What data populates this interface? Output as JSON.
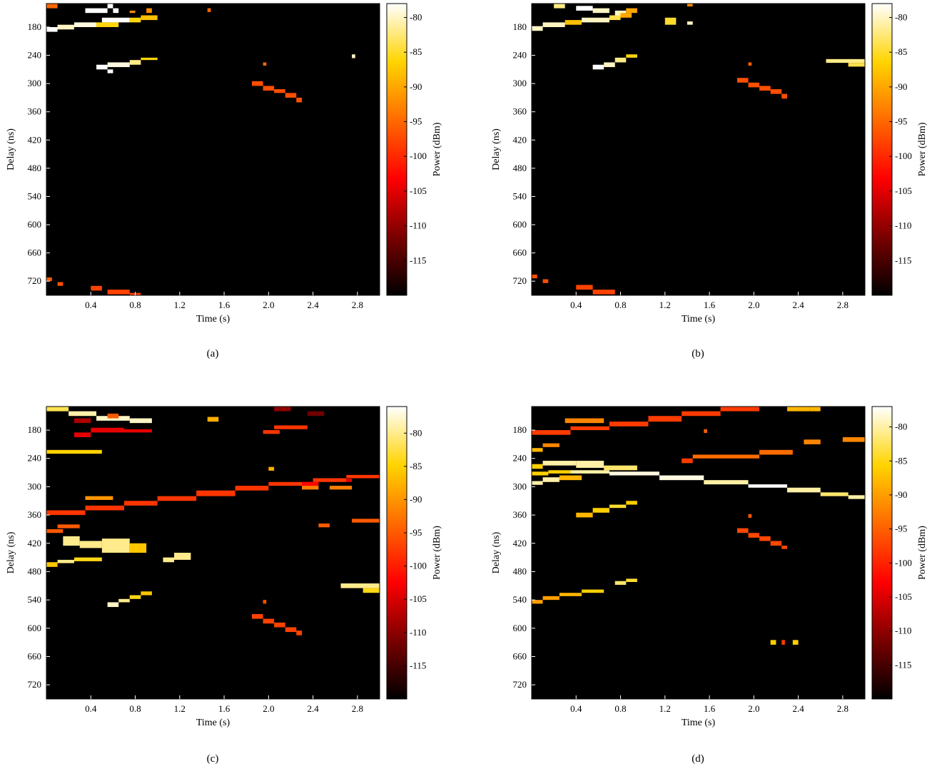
{
  "figure": {
    "captions": [
      "(a)",
      "(b)",
      "(c)",
      "(d)"
    ]
  },
  "colormap": {
    "name": "hot",
    "stops": [
      "#000000",
      "#7a0000",
      "#ff0000",
      "#ff6a00",
      "#ffd400",
      "#ffffff"
    ],
    "background": "#000000"
  },
  "chart_data": [
    {
      "type": "heatmap",
      "panel": "(a)",
      "xlabel": "Time (s)",
      "ylabel": "Delay (ns)",
      "colorbar_label": "Power (dBm)",
      "xlim": [
        0.0,
        3.0
      ],
      "ylim": [
        130,
        750
      ],
      "xticks": [
        0.4,
        0.8,
        1.2,
        1.6,
        2.0,
        2.4,
        2.8
      ],
      "yticks": [
        180,
        240,
        300,
        360,
        420,
        480,
        540,
        600,
        660,
        720
      ],
      "clim": [
        -120,
        -78
      ],
      "cticks": [
        -80,
        -85,
        -90,
        -95,
        -100,
        -105,
        -110,
        -115
      ],
      "cells": [
        [
          0.0,
          0.1,
          130,
          140,
          -95
        ],
        [
          0.55,
          0.6,
          130,
          140,
          -78
        ],
        [
          0.35,
          0.55,
          140,
          150,
          -78
        ],
        [
          0.6,
          0.65,
          140,
          150,
          -78
        ],
        [
          0.9,
          0.95,
          140,
          150,
          -92
        ],
        [
          0.75,
          0.8,
          145,
          150,
          -92
        ],
        [
          0.85,
          1.0,
          155,
          165,
          -88
        ],
        [
          0.5,
          0.75,
          160,
          170,
          -78
        ],
        [
          0.75,
          0.85,
          160,
          170,
          -86
        ],
        [
          0.25,
          0.45,
          170,
          180,
          -79
        ],
        [
          0.45,
          0.65,
          170,
          180,
          -86
        ],
        [
          0.0,
          0.1,
          180,
          190,
          -78
        ],
        [
          0.1,
          0.25,
          175,
          185,
          -80
        ],
        [
          0.45,
          0.55,
          260,
          270,
          -78
        ],
        [
          0.55,
          0.75,
          255,
          265,
          -79
        ],
        [
          0.75,
          0.85,
          250,
          260,
          -82
        ],
        [
          0.85,
          1.0,
          245,
          250,
          -86
        ],
        [
          0.55,
          0.6,
          270,
          278,
          -78
        ],
        [
          1.45,
          1.48,
          140,
          148,
          -95
        ],
        [
          1.95,
          1.98,
          255,
          262,
          -95
        ],
        [
          1.85,
          1.95,
          295,
          305,
          -97
        ],
        [
          1.95,
          2.05,
          305,
          315,
          -97
        ],
        [
          2.05,
          2.15,
          312,
          320,
          -97
        ],
        [
          2.15,
          2.25,
          320,
          330,
          -97
        ],
        [
          2.25,
          2.3,
          330,
          340,
          -97
        ],
        [
          2.75,
          2.78,
          238,
          246,
          -80
        ],
        [
          0.0,
          0.05,
          712,
          720,
          -96
        ],
        [
          0.1,
          0.15,
          722,
          730,
          -97
        ],
        [
          0.4,
          0.5,
          730,
          740,
          -98
        ],
        [
          0.55,
          0.75,
          738,
          748,
          -98
        ],
        [
          0.75,
          0.85,
          745,
          750,
          -98
        ]
      ]
    },
    {
      "type": "heatmap",
      "panel": "(b)",
      "xlabel": "Time (s)",
      "ylabel": "Delay (ns)",
      "colorbar_label": "Power (dBm)",
      "xlim": [
        0.0,
        3.0
      ],
      "ylim": [
        130,
        750
      ],
      "xticks": [
        0.4,
        0.8,
        1.2,
        1.6,
        2.0,
        2.4,
        2.8
      ],
      "yticks": [
        180,
        240,
        300,
        360,
        420,
        480,
        540,
        600,
        660,
        720
      ],
      "clim": [
        -120,
        -78
      ],
      "cticks": [
        -80,
        -85,
        -90,
        -95,
        -100,
        -105,
        -110,
        -115
      ],
      "cells": [
        [
          0.2,
          0.3,
          130,
          140,
          -82
        ],
        [
          0.4,
          0.55,
          135,
          145,
          -78
        ],
        [
          0.55,
          0.7,
          140,
          150,
          -80
        ],
        [
          0.75,
          0.85,
          145,
          155,
          -80
        ],
        [
          0.85,
          0.95,
          140,
          150,
          -90
        ],
        [
          1.4,
          1.45,
          130,
          136,
          -92
        ],
        [
          0.3,
          0.45,
          165,
          175,
          -88
        ],
        [
          0.45,
          0.7,
          160,
          170,
          -80
        ],
        [
          0.7,
          0.8,
          155,
          165,
          -84
        ],
        [
          0.8,
          0.9,
          150,
          160,
          -90
        ],
        [
          0.0,
          0.1,
          178,
          188,
          -80
        ],
        [
          0.1,
          0.3,
          170,
          180,
          -80
        ],
        [
          1.2,
          1.3,
          160,
          175,
          -85
        ],
        [
          1.4,
          1.45,
          168,
          175,
          -80
        ],
        [
          0.55,
          0.65,
          260,
          270,
          -78
        ],
        [
          0.65,
          0.75,
          255,
          265,
          -80
        ],
        [
          0.75,
          0.85,
          245,
          255,
          -82
        ],
        [
          0.85,
          0.95,
          238,
          245,
          -86
        ],
        [
          2.65,
          3.0,
          248,
          256,
          -82
        ],
        [
          2.85,
          3.0,
          256,
          264,
          -84
        ],
        [
          1.95,
          1.98,
          255,
          262,
          -96
        ],
        [
          1.85,
          1.95,
          288,
          298,
          -97
        ],
        [
          1.95,
          2.05,
          298,
          308,
          -97
        ],
        [
          2.05,
          2.15,
          305,
          315,
          -97
        ],
        [
          2.15,
          2.25,
          312,
          322,
          -97
        ],
        [
          2.25,
          2.3,
          322,
          332,
          -97
        ],
        [
          0.0,
          0.05,
          706,
          714,
          -97
        ],
        [
          0.1,
          0.15,
          716,
          724,
          -97
        ],
        [
          0.4,
          0.55,
          728,
          738,
          -98
        ],
        [
          0.55,
          0.75,
          738,
          748,
          -98
        ]
      ]
    },
    {
      "type": "heatmap",
      "panel": "(c)",
      "xlabel": "Time (s)",
      "ylabel": "Delay (ns)",
      "colorbar_label": "Power (dBm)",
      "xlim": [
        0.0,
        3.0
      ],
      "ylim": [
        130,
        750
      ],
      "xticks": [
        0.4,
        0.8,
        1.2,
        1.6,
        2.0,
        2.4,
        2.8
      ],
      "yticks": [
        180,
        240,
        300,
        360,
        420,
        480,
        540,
        600,
        660,
        720
      ],
      "clim": [
        -120,
        -76
      ],
      "cticks": [
        -80,
        -85,
        -90,
        -95,
        -100,
        -105,
        -110,
        -115
      ],
      "cells": [
        [
          0.0,
          0.2,
          130,
          140,
          -82
        ],
        [
          0.2,
          0.45,
          140,
          150,
          -79
        ],
        [
          0.45,
          0.75,
          150,
          160,
          -78
        ],
        [
          0.75,
          0.95,
          155,
          165,
          -78
        ],
        [
          0.55,
          0.65,
          145,
          155,
          -95
        ],
        [
          1.45,
          1.55,
          152,
          162,
          -88
        ],
        [
          0.25,
          0.4,
          155,
          165,
          -108
        ],
        [
          0.4,
          0.7,
          175,
          185,
          -104
        ],
        [
          0.7,
          0.95,
          178,
          185,
          -104
        ],
        [
          0.25,
          0.4,
          185,
          195,
          -104
        ],
        [
          0.0,
          0.5,
          222,
          230,
          -85
        ],
        [
          2.05,
          2.35,
          170,
          178,
          -98
        ],
        [
          1.95,
          2.1,
          180,
          188,
          -98
        ],
        [
          2.05,
          2.2,
          130,
          140,
          -110
        ],
        [
          2.35,
          2.5,
          140,
          150,
          -112
        ],
        [
          0.0,
          0.35,
          350,
          360,
          -98
        ],
        [
          0.35,
          0.7,
          340,
          350,
          -98
        ],
        [
          0.7,
          1.0,
          330,
          340,
          -98
        ],
        [
          1.0,
          1.35,
          320,
          330,
          -98
        ],
        [
          1.35,
          1.7,
          308,
          320,
          -98
        ],
        [
          1.7,
          2.0,
          298,
          308,
          -98
        ],
        [
          2.0,
          2.4,
          290,
          298,
          -98
        ],
        [
          2.4,
          2.7,
          282,
          290,
          -98
        ],
        [
          2.7,
          3.0,
          275,
          282,
          -98
        ],
        [
          2.3,
          2.45,
          290,
          298,
          -102
        ],
        [
          2.7,
          2.75,
          283,
          290,
          -104
        ],
        [
          2.3,
          2.45,
          298,
          306,
          -92
        ],
        [
          0.35,
          0.6,
          320,
          328,
          -90
        ],
        [
          2.55,
          2.75,
          298,
          306,
          -92
        ],
        [
          2.45,
          2.55,
          378,
          386,
          -95
        ],
        [
          2.75,
          3.0,
          368,
          376,
          -95
        ],
        [
          0.0,
          0.15,
          390,
          398,
          -95
        ],
        [
          0.1,
          0.3,
          380,
          388,
          -95
        ],
        [
          0.15,
          0.3,
          405,
          425,
          -80
        ],
        [
          0.3,
          0.5,
          415,
          430,
          -80
        ],
        [
          0.5,
          0.75,
          410,
          440,
          -80
        ],
        [
          0.75,
          0.9,
          420,
          440,
          -86
        ],
        [
          0.0,
          0.1,
          460,
          470,
          -86
        ],
        [
          0.1,
          0.25,
          455,
          462,
          -80
        ],
        [
          0.25,
          0.5,
          450,
          458,
          -84
        ],
        [
          1.15,
          1.3,
          440,
          455,
          -80
        ],
        [
          1.05,
          1.15,
          450,
          460,
          -80
        ],
        [
          2.65,
          3.0,
          505,
          515,
          -80
        ],
        [
          2.85,
          3.0,
          515,
          525,
          -84
        ],
        [
          0.55,
          0.65,
          545,
          555,
          -78
        ],
        [
          0.65,
          0.75,
          538,
          545,
          -80
        ],
        [
          0.75,
          0.85,
          530,
          538,
          -84
        ],
        [
          0.85,
          0.95,
          522,
          530,
          -86
        ],
        [
          1.95,
          1.98,
          540,
          548,
          -96
        ],
        [
          1.85,
          1.95,
          570,
          580,
          -97
        ],
        [
          1.95,
          2.05,
          580,
          590,
          -97
        ],
        [
          2.05,
          2.15,
          588,
          598,
          -97
        ],
        [
          2.15,
          2.25,
          598,
          608,
          -97
        ],
        [
          2.25,
          2.3,
          605,
          615,
          -97
        ],
        [
          2.0,
          2.05,
          258,
          266,
          -88
        ]
      ]
    },
    {
      "type": "heatmap",
      "panel": "(d)",
      "xlabel": "Time (s)",
      "ylabel": "Delay (ns)",
      "colorbar_label": "Power (dBm)",
      "xlim": [
        0.0,
        3.0
      ],
      "ylim": [
        130,
        750
      ],
      "xticks": [
        0.4,
        0.8,
        1.2,
        1.6,
        2.0,
        2.4,
        2.8
      ],
      "yticks": [
        180,
        240,
        300,
        360,
        420,
        480,
        540,
        600,
        660,
        720
      ],
      "clim": [
        -120,
        -77
      ],
      "cticks": [
        -80,
        -85,
        -90,
        -95,
        -100,
        -105,
        -110,
        -115
      ],
      "cells": [
        [
          0.3,
          0.65,
          155,
          165,
          -92
        ],
        [
          0.0,
          0.35,
          180,
          190,
          -98
        ],
        [
          0.35,
          0.7,
          172,
          180,
          -98
        ],
        [
          0.7,
          1.05,
          162,
          172,
          -98
        ],
        [
          1.05,
          1.35,
          150,
          162,
          -98
        ],
        [
          1.35,
          1.7,
          140,
          150,
          -98
        ],
        [
          1.7,
          2.05,
          130,
          140,
          -98
        ],
        [
          2.3,
          2.5,
          130,
          140,
          -88
        ],
        [
          2.5,
          2.6,
          130,
          140,
          -88
        ],
        [
          2.8,
          3.0,
          195,
          205,
          -92
        ],
        [
          2.45,
          2.6,
          200,
          210,
          -92
        ],
        [
          1.55,
          1.58,
          178,
          186,
          -95
        ],
        [
          0.0,
          0.1,
          218,
          226,
          -88
        ],
        [
          0.1,
          0.25,
          208,
          216,
          -92
        ],
        [
          1.35,
          1.45,
          240,
          250,
          -98
        ],
        [
          1.45,
          2.05,
          232,
          240,
          -94
        ],
        [
          2.05,
          2.35,
          222,
          232,
          -94
        ],
        [
          0.0,
          0.1,
          252,
          262,
          -86
        ],
        [
          0.1,
          0.4,
          245,
          255,
          -80
        ],
        [
          0.4,
          0.65,
          245,
          260,
          -80
        ],
        [
          0.65,
          0.95,
          255,
          265,
          -82
        ],
        [
          0.0,
          0.15,
          268,
          276,
          -86
        ],
        [
          0.15,
          0.35,
          265,
          272,
          -86
        ],
        [
          0.35,
          0.7,
          265,
          272,
          -80
        ],
        [
          0.7,
          1.15,
          268,
          276,
          -78
        ],
        [
          1.15,
          1.55,
          276,
          286,
          -78
        ],
        [
          1.55,
          1.95,
          286,
          295,
          -80
        ],
        [
          1.95,
          2.3,
          295,
          302,
          -77
        ],
        [
          2.3,
          2.6,
          302,
          312,
          -80
        ],
        [
          2.6,
          2.85,
          312,
          320,
          -82
        ],
        [
          2.85,
          3.0,
          318,
          326,
          -80
        ],
        [
          0.0,
          0.1,
          288,
          296,
          -80
        ],
        [
          0.1,
          0.25,
          280,
          290,
          -80
        ],
        [
          0.25,
          0.45,
          276,
          286,
          -88
        ],
        [
          0.4,
          0.55,
          355,
          365,
          -88
        ],
        [
          0.55,
          0.7,
          345,
          355,
          -86
        ],
        [
          0.7,
          0.85,
          338,
          345,
          -84
        ],
        [
          0.85,
          0.95,
          330,
          338,
          -86
        ],
        [
          0.0,
          0.1,
          540,
          548,
          -90
        ],
        [
          0.1,
          0.25,
          532,
          540,
          -90
        ],
        [
          0.25,
          0.45,
          525,
          532,
          -88
        ],
        [
          0.45,
          0.65,
          518,
          525,
          -86
        ],
        [
          0.75,
          0.85,
          500,
          508,
          -82
        ],
        [
          0.85,
          0.95,
          495,
          502,
          -84
        ],
        [
          1.95,
          1.98,
          358,
          366,
          -96
        ],
        [
          1.85,
          1.95,
          388,
          398,
          -97
        ],
        [
          1.95,
          2.05,
          398,
          408,
          -97
        ],
        [
          2.05,
          2.15,
          405,
          415,
          -97
        ],
        [
          2.15,
          2.25,
          415,
          425,
          -97
        ],
        [
          2.25,
          2.3,
          425,
          432,
          -97
        ],
        [
          2.15,
          2.2,
          625,
          635,
          -86
        ],
        [
          2.25,
          2.28,
          625,
          635,
          -98
        ],
        [
          2.35,
          2.4,
          625,
          635,
          -86
        ]
      ]
    }
  ]
}
